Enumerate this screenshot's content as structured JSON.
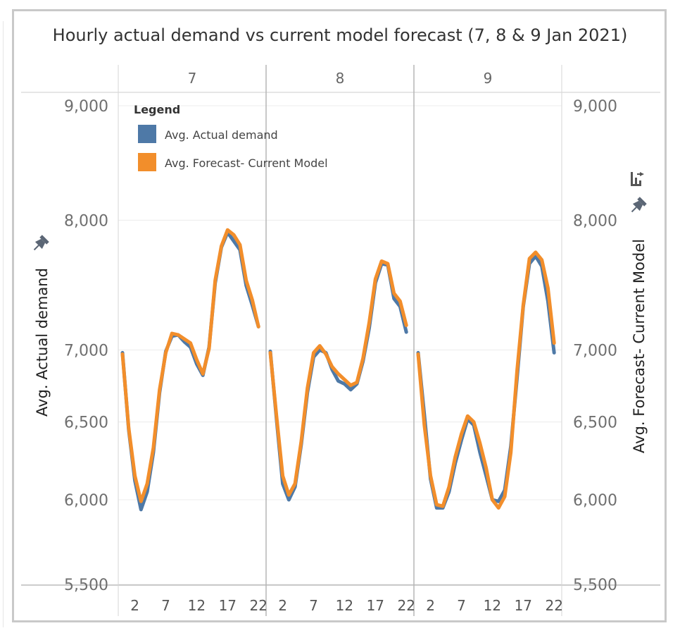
{
  "chart_data": {
    "type": "line",
    "title": "Hourly actual demand vs current model forecast (7, 8 & 9 Jan 2021)",
    "ylabel_left": "Avg. Actual demand",
    "ylabel_right": "Avg. Forecast- Current Model",
    "yticks": [
      5500,
      6000,
      6500,
      7000,
      8000,
      9000
    ],
    "ytick_labels": [
      "5,500",
      "6,000",
      "6,500",
      "7,000",
      "8,000",
      "9,000"
    ],
    "ylim": [
      5300,
      9300
    ],
    "y_scale": "log",
    "grid": true,
    "xtick_labels": [
      "2",
      "7",
      "12",
      "17",
      "22"
    ],
    "x_ticks": [
      2,
      7,
      12,
      17,
      22
    ],
    "x_range": [
      0,
      23
    ],
    "legend": {
      "title": "Legend",
      "placement": "top-left",
      "entries": [
        "Avg. Actual demand",
        "Avg. Forecast- Current Model"
      ]
    },
    "panels": [
      {
        "label": "7",
        "series": [
          {
            "name": "Avg. Actual demand",
            "color": "#4e79a7",
            "values": [
              6980,
              6450,
              6120,
              5940,
              6050,
              6300,
              6700,
              6990,
              7100,
              7110,
              7060,
              7020,
              6900,
              6820,
              7020,
              7500,
              7780,
              7900,
              7830,
              7760,
              7480,
              7330,
              7170
            ]
          },
          {
            "name": "Avg. Forecast- Current Model",
            "color": "#f28e2b",
            "values": [
              6970,
              6460,
              6150,
              5990,
              6100,
              6330,
              6720,
              6980,
              7120,
              7110,
              7080,
              7050,
              6930,
              6830,
              7010,
              7520,
              7790,
              7920,
              7880,
              7800,
              7520,
              7370,
              7170
            ]
          }
        ]
      },
      {
        "label": "8",
        "series": [
          {
            "name": "Avg. Actual demand",
            "color": "#4e79a7",
            "values": [
              6990,
              6520,
              6100,
              6000,
              6080,
              6350,
              6700,
              6950,
              7000,
              6980,
              6860,
              6780,
              6760,
              6720,
              6760,
              6920,
              7160,
              7500,
              7650,
              7640,
              7380,
              7320,
              7130
            ]
          },
          {
            "name": "Avg. Forecast- Current Model",
            "color": "#f28e2b",
            "values": [
              6980,
              6540,
              6150,
              6030,
              6100,
              6370,
              6730,
              6980,
              7030,
              6970,
              6880,
              6830,
              6790,
              6750,
              6770,
              6940,
              7200,
              7530,
              7670,
              7650,
              7420,
              7360,
              7180
            ]
          }
        ]
      },
      {
        "label": "9",
        "series": [
          {
            "name": "Avg. Actual demand",
            "color": "#4e79a7",
            "values": [
              6980,
              6550,
              6130,
              5950,
              5950,
              6050,
              6230,
              6380,
              6520,
              6480,
              6300,
              6150,
              6000,
              5990,
              6060,
              6340,
              6800,
              7320,
              7650,
              7710,
              7630,
              7360,
              6980
            ]
          },
          {
            "name": "Avg. Forecast- Current Model",
            "color": "#f28e2b",
            "values": [
              6970,
              6480,
              6150,
              5970,
              5960,
              6080,
              6270,
              6420,
              6540,
              6500,
              6360,
              6200,
              6000,
              5950,
              6020,
              6300,
              6850,
              7330,
              7690,
              7740,
              7680,
              7460,
              7050
            ]
          }
        ]
      }
    ]
  }
}
